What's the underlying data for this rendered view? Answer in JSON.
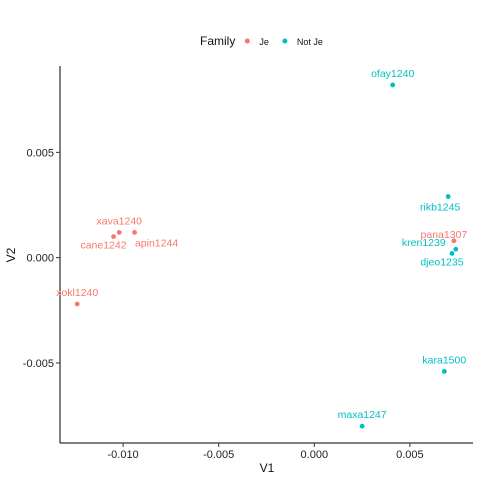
{
  "chart_data": {
    "type": "scatter",
    "xlabel": "V1",
    "ylabel": "V2",
    "xlim": [
      -0.0133,
      0.0083
    ],
    "ylim": [
      -0.0088,
      0.0091
    ],
    "xticks": [
      {
        "value": -0.01,
        "label": "-0.010"
      },
      {
        "value": -0.005,
        "label": "-0.005"
      },
      {
        "value": 0.0,
        "label": "0.000"
      },
      {
        "value": 0.005,
        "label": "0.005"
      }
    ],
    "yticks": [
      {
        "value": -0.005,
        "label": "-0.005"
      },
      {
        "value": 0.0,
        "label": "0.000"
      },
      {
        "value": 0.005,
        "label": "0.005"
      }
    ],
    "grid": false,
    "legend": {
      "title": "Family",
      "position": "top",
      "entries": [
        {
          "name": "Je",
          "color": "#F8766D"
        },
        {
          "name": "Not Je",
          "color": "#00BFC4"
        }
      ]
    },
    "series": [
      {
        "name": "Je",
        "color": "#F8766D",
        "points": [
          {
            "label": "xava1240",
            "x": -0.0102,
            "y": 0.0012,
            "label_pos": "above"
          },
          {
            "label": "cane1242",
            "x": -0.0105,
            "y": 0.001,
            "label_pos": "below"
          },
          {
            "label": "apin1244",
            "x": -0.0094,
            "y": 0.0012,
            "label_pos": "below-right"
          },
          {
            "label": "xokl1240",
            "x": -0.0124,
            "y": -0.0022,
            "label_pos": "above"
          },
          {
            "label": "pana1307",
            "x": 0.0073,
            "y": 0.0008,
            "label_pos": "above-left"
          }
        ]
      },
      {
        "name": "Not Je",
        "color": "#00BFC4",
        "points": [
          {
            "label": "ofay1240",
            "x": 0.0041,
            "y": 0.0082,
            "label_pos": "above"
          },
          {
            "label": "rikb1245",
            "x": 0.007,
            "y": 0.0029,
            "label_pos": "below-left"
          },
          {
            "label": "kren1239",
            "x": 0.0074,
            "y": 0.0004,
            "label_pos": "left"
          },
          {
            "label": "djeo1235",
            "x": 0.0072,
            "y": 0.0002,
            "label_pos": "below"
          },
          {
            "label": "kara1500",
            "x": 0.0068,
            "y": -0.0054,
            "label_pos": "above"
          },
          {
            "label": "maxa1247",
            "x": 0.0025,
            "y": -0.008,
            "label_pos": "above"
          }
        ]
      }
    ]
  }
}
